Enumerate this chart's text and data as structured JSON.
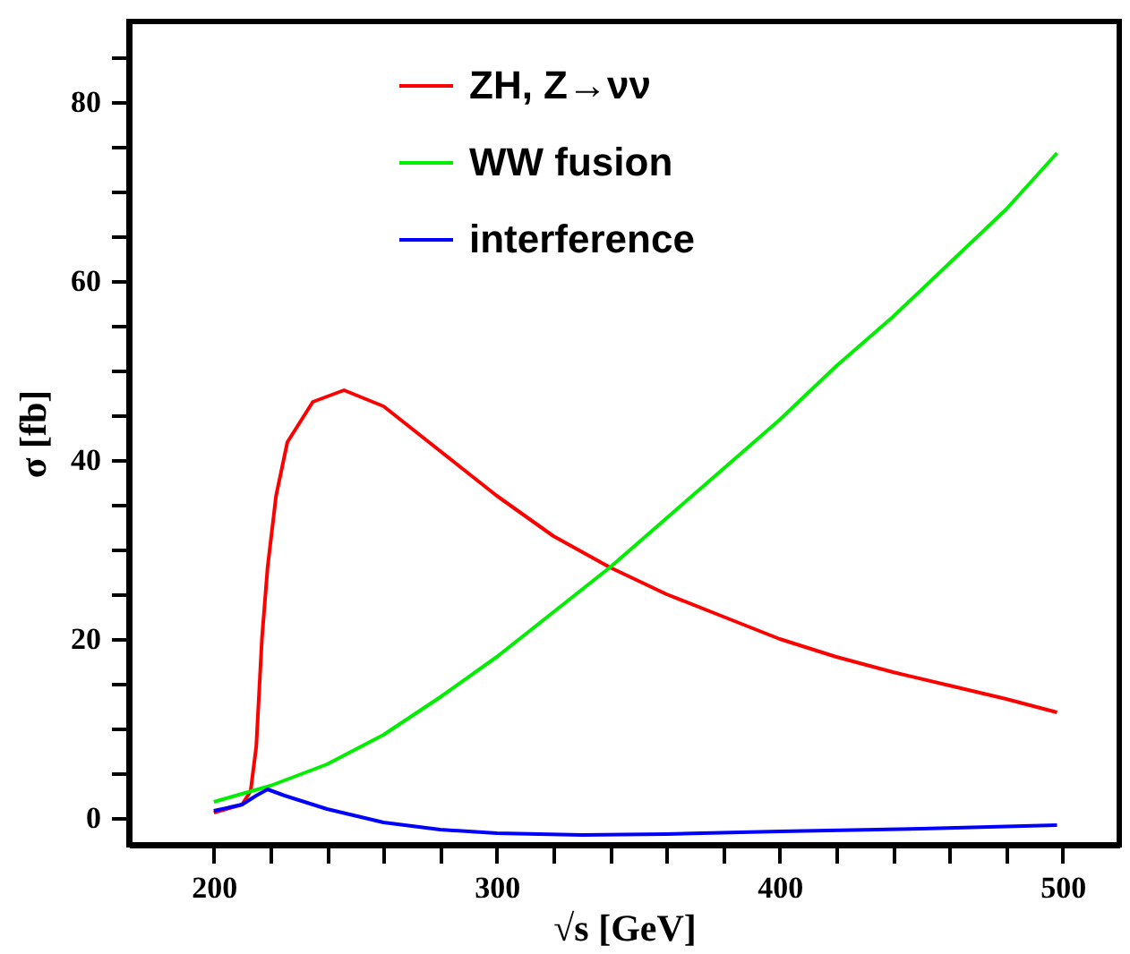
{
  "chart_data": {
    "type": "line",
    "xlabel": "√s [GeV]",
    "ylabel": "σ [fb]",
    "xlim": [
      170,
      520
    ],
    "ylim": [
      -3,
      89
    ],
    "xticks": [
      200,
      {
        "value": 220,
        "label": null
      },
      {
        "value": 240,
        "label": null
      },
      {
        "value": 260,
        "label": null
      },
      {
        "value": 280,
        "label": null
      },
      300,
      {
        "value": 320,
        "label": null
      },
      {
        "value": 340,
        "label": null
      },
      {
        "value": 360,
        "label": null
      },
      {
        "value": 380,
        "label": null
      },
      400,
      {
        "value": 420,
        "label": null
      },
      {
        "value": 440,
        "label": null
      },
      {
        "value": 460,
        "label": null
      },
      {
        "value": 480,
        "label": null
      },
      500
    ],
    "yticks": [
      0,
      {
        "value": 5,
        "label": null
      },
      {
        "value": 10,
        "label": null
      },
      {
        "value": 15,
        "label": null
      },
      20,
      {
        "value": 25,
        "label": null
      },
      {
        "value": 30,
        "label": null
      },
      {
        "value": 35,
        "label": null
      },
      40,
      {
        "value": 45,
        "label": null
      },
      {
        "value": 50,
        "label": null
      },
      {
        "value": 55,
        "label": null
      },
      60,
      {
        "value": 65,
        "label": null
      },
      {
        "value": 70,
        "label": null
      },
      {
        "value": 75,
        "label": null
      },
      80,
      {
        "value": 85,
        "label": null
      }
    ],
    "grid": false,
    "legend": "top left",
    "series": [
      {
        "name": "ZH, Z→νν",
        "color": "#ff0000",
        "x": [
          200,
          210,
          213,
          215,
          217,
          219,
          222,
          226,
          235,
          246,
          260,
          280,
          300,
          320,
          340,
          360,
          380,
          400,
          420,
          440,
          460,
          480,
          498
        ],
        "values": [
          0.6,
          1.5,
          3,
          8,
          20,
          28,
          36,
          42,
          46.5,
          47.8,
          46,
          41,
          36,
          31.5,
          28,
          25,
          22.5,
          20,
          18,
          16.3,
          14.8,
          13.3,
          11.8
        ]
      },
      {
        "name": "WW fusion",
        "color": "#00ee00",
        "x": [
          200,
          220,
          240,
          260,
          280,
          300,
          320,
          340,
          360,
          380,
          400,
          420,
          440,
          460,
          480,
          498
        ],
        "values": [
          1.8,
          3.6,
          6,
          9.3,
          13.5,
          18,
          23,
          28,
          33.5,
          39,
          44.5,
          50.5,
          56,
          62,
          68,
          74.3
        ]
      },
      {
        "name": "interference",
        "color": "#0000ff",
        "x": [
          200,
          210,
          215,
          219,
          225,
          240,
          260,
          280,
          300,
          330,
          360,
          400,
          450,
          498
        ],
        "values": [
          0.8,
          1.5,
          2.5,
          3.2,
          2.5,
          1,
          -0.5,
          -1.3,
          -1.7,
          -1.9,
          -1.8,
          -1.5,
          -1.2,
          -0.8
        ]
      }
    ]
  }
}
